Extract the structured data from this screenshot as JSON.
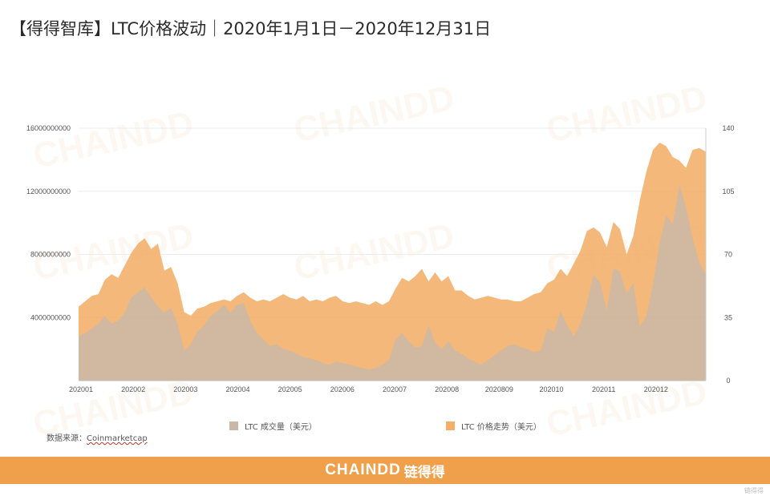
{
  "title": "【得得智库】LTC价格波动｜2020年1月1日－2020年12月31日",
  "legend": {
    "volume": "LTC 成交量（美元）",
    "price": "LTC 价格走势（美元）"
  },
  "source": {
    "label": "数据来源：",
    "name": "Coinmarketcap"
  },
  "footer": {
    "brand": "CHAINDD",
    "brand_cn": "链得得"
  },
  "watermark": {
    "text": "CHAINDD",
    "sub": "链得得"
  },
  "corner_logo": "链得得",
  "colors": {
    "volume": "#c9b8a7",
    "price": "#f2b06b",
    "footer": "#f0a04b"
  },
  "chart_data": {
    "type": "area",
    "x_ticks": [
      "202001",
      "202002",
      "202003",
      "202004",
      "202005",
      "202006",
      "202007",
      "202008",
      "2020809",
      "202010",
      "202011",
      "202012"
    ],
    "y_left": {
      "ticks": [
        "4000000000",
        "8000000000",
        "12000000000",
        "16000000000"
      ],
      "range": [
        0,
        16000000000
      ]
    },
    "y_right": {
      "ticks": [
        "0",
        "35",
        "70",
        "105",
        "140"
      ],
      "range": [
        0,
        140
      ]
    },
    "grid": true,
    "series": [
      {
        "name": "LTC 价格走势（美元）",
        "axis": "right",
        "values": [
          41,
          44,
          47,
          48,
          56,
          59,
          57,
          64,
          71,
          76,
          79,
          73,
          76,
          61,
          63,
          54,
          38,
          36,
          40,
          41,
          43,
          44,
          45,
          44,
          47,
          49,
          46,
          44,
          45,
          44,
          46,
          48,
          46,
          45,
          47,
          44,
          45,
          44,
          46,
          47,
          44,
          43,
          44,
          43,
          42,
          44,
          42,
          44,
          51,
          57,
          55,
          58,
          62,
          55,
          60,
          55,
          58,
          50,
          50,
          47,
          45,
          46,
          47,
          46,
          45,
          45,
          44,
          44,
          46,
          48,
          49,
          54,
          56,
          62,
          58,
          65,
          72,
          83,
          85,
          82,
          74,
          88,
          84,
          70,
          80,
          100,
          116,
          128,
          132,
          130,
          124,
          122,
          118,
          128,
          129,
          127
        ]
      },
      {
        "name": "LTC 成交量（美元）",
        "axis": "left",
        "values": [
          2800000000,
          3000000000,
          3300000000,
          3600000000,
          4100000000,
          3600000000,
          3800000000,
          4300000000,
          5300000000,
          5600000000,
          5900000000,
          5300000000,
          4700000000,
          4300000000,
          4600000000,
          3600000000,
          1900000000,
          2300000000,
          3100000000,
          3500000000,
          4100000000,
          4400000000,
          4800000000,
          4300000000,
          4800000000,
          4900000000,
          3800000000,
          3000000000,
          2600000000,
          2200000000,
          2300000000,
          2000000000,
          1900000000,
          1700000000,
          1500000000,
          1400000000,
          1300000000,
          1100000000,
          1000000000,
          1200000000,
          1100000000,
          1000000000,
          900000000,
          800000000,
          700000000,
          800000000,
          1000000000,
          1300000000,
          2600000000,
          3000000000,
          2500000000,
          2100000000,
          2200000000,
          3500000000,
          2400000000,
          2000000000,
          2500000000,
          1900000000,
          1700000000,
          1400000000,
          1200000000,
          1000000000,
          1300000000,
          1600000000,
          1900000000,
          2200000000,
          2300000000,
          2100000000,
          2000000000,
          1800000000,
          1900000000,
          3300000000,
          3100000000,
          4400000000,
          3500000000,
          2800000000,
          3600000000,
          4900000000,
          6700000000,
          6200000000,
          4400000000,
          7100000000,
          6900000000,
          5500000000,
          6200000000,
          3400000000,
          4100000000,
          6100000000,
          8700000000,
          10500000000,
          9900000000,
          12400000000,
          11000000000,
          9000000000,
          7500000000,
          6700000000
        ]
      }
    ]
  }
}
